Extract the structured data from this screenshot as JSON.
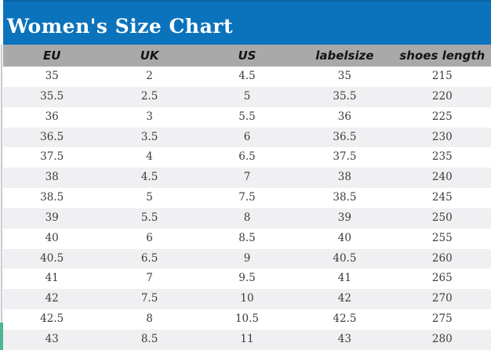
{
  "title_bar": {
    "title": "Women's Size Chart"
  },
  "colors": {
    "title_bar_blue": "#0b73bc",
    "title_bar_top_edge": "#0a65a4",
    "title_text": "#ffffff",
    "column_header_gray": "#a9a9a9",
    "row_stripe_gray": "#f0eff1",
    "data_text": "#3b3b3b",
    "left_edge_teal_accent": "#4db795"
  },
  "chart_data": {
    "type": "table",
    "title": "Women's Size Chart",
    "columns": [
      "EU",
      "UK",
      "US",
      "labelsize",
      "shoes length"
    ],
    "rows": [
      [
        "35",
        "2",
        "4.5",
        "35",
        "215"
      ],
      [
        "35.5",
        "2.5",
        "5",
        "35.5",
        "220"
      ],
      [
        "36",
        "3",
        "5.5",
        "36",
        "225"
      ],
      [
        "36.5",
        "3.5",
        "6",
        "36.5",
        "230"
      ],
      [
        "37.5",
        "4",
        "6.5",
        "37.5",
        "235"
      ],
      [
        "38",
        "4.5",
        "7",
        "38",
        "240"
      ],
      [
        "38.5",
        "5",
        "7.5",
        "38.5",
        "245"
      ],
      [
        "39",
        "5.5",
        "8",
        "39",
        "250"
      ],
      [
        "40",
        "6",
        "8.5",
        "40",
        "255"
      ],
      [
        "40.5",
        "6.5",
        "9",
        "40.5",
        "260"
      ],
      [
        "41",
        "7",
        "9.5",
        "41",
        "265"
      ],
      [
        "42",
        "7.5",
        "10",
        "42",
        "270"
      ],
      [
        "42.5",
        "8",
        "10.5",
        "42.5",
        "275"
      ],
      [
        "43",
        "8.5",
        "11",
        "43",
        "280"
      ]
    ],
    "layout": {
      "columns_equal_width": true,
      "row_striping": "alternating white / light gray",
      "header_row_background": "gray",
      "title_background": "blue"
    }
  }
}
